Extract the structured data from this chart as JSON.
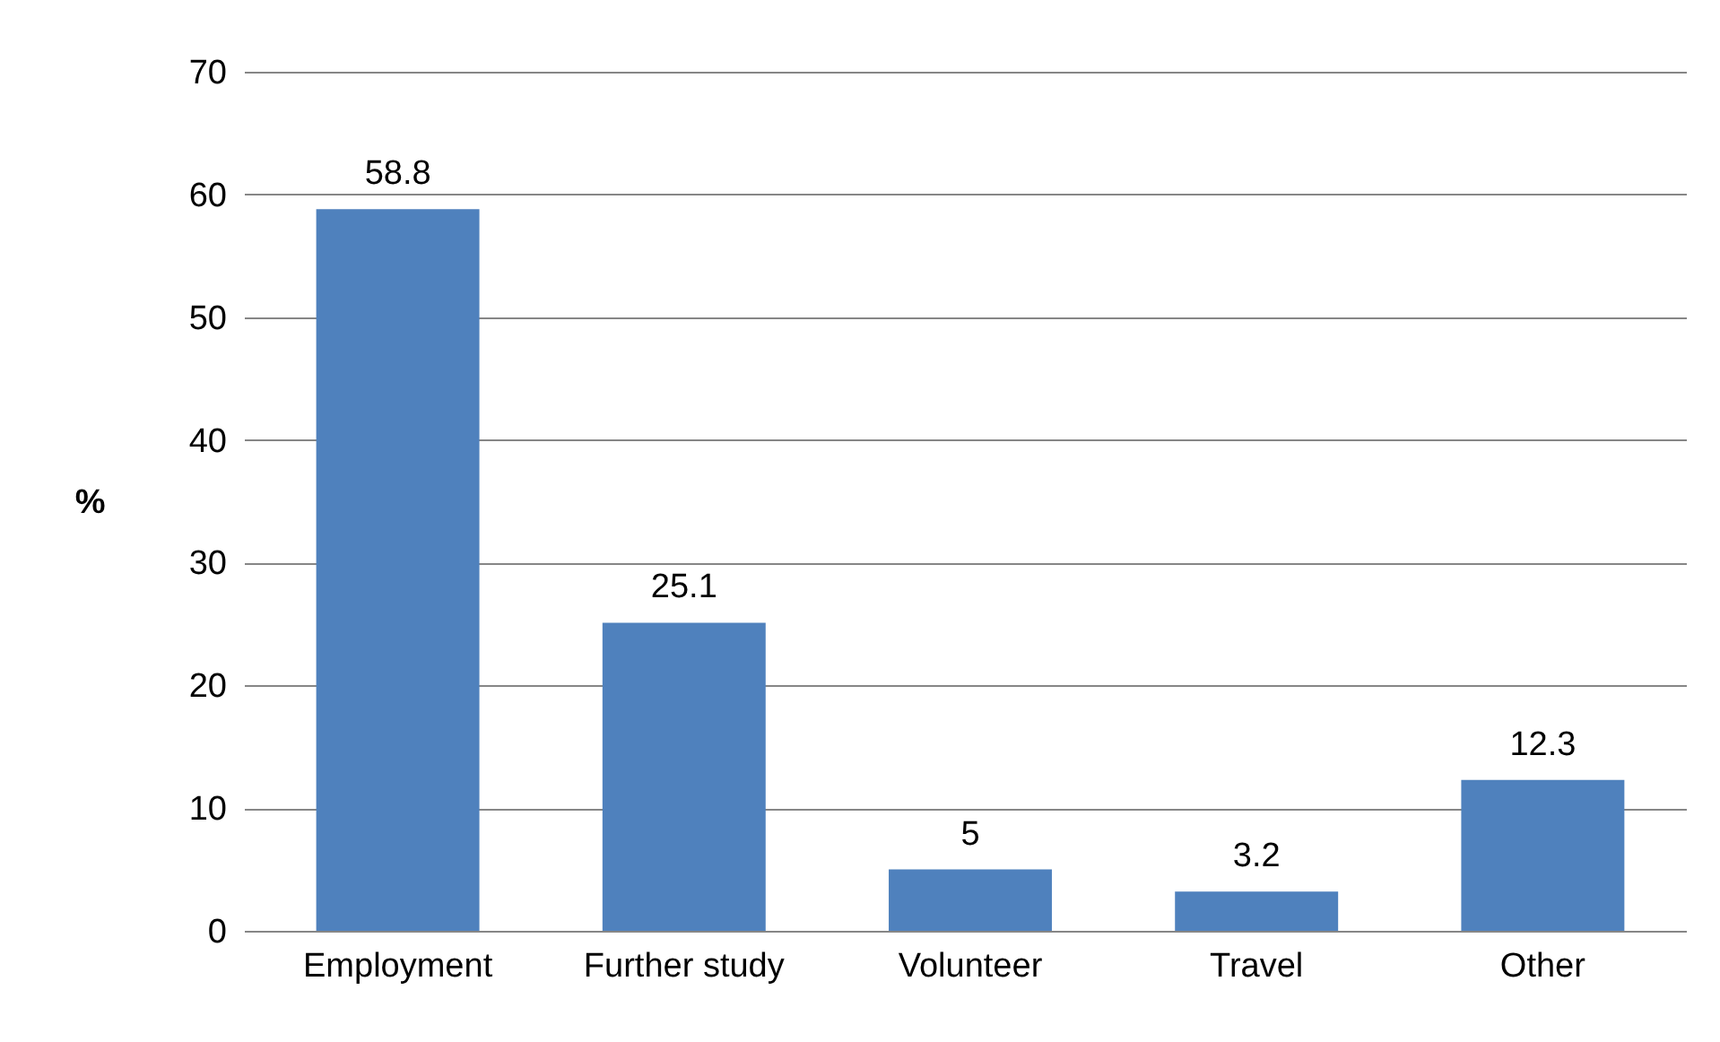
{
  "chart_data": {
    "type": "bar",
    "ylabel": "%",
    "categories": [
      "Employment",
      "Further study",
      "Volunteer",
      "Travel",
      "Other"
    ],
    "values": [
      58.8,
      25.1,
      5,
      3.2,
      12.3
    ],
    "color": "#4f81bd",
    "ylim": [
      0,
      70
    ],
    "yticks": [
      0,
      10,
      20,
      30,
      40,
      50,
      60,
      70
    ],
    "grid": "y",
    "data_labels": true
  }
}
